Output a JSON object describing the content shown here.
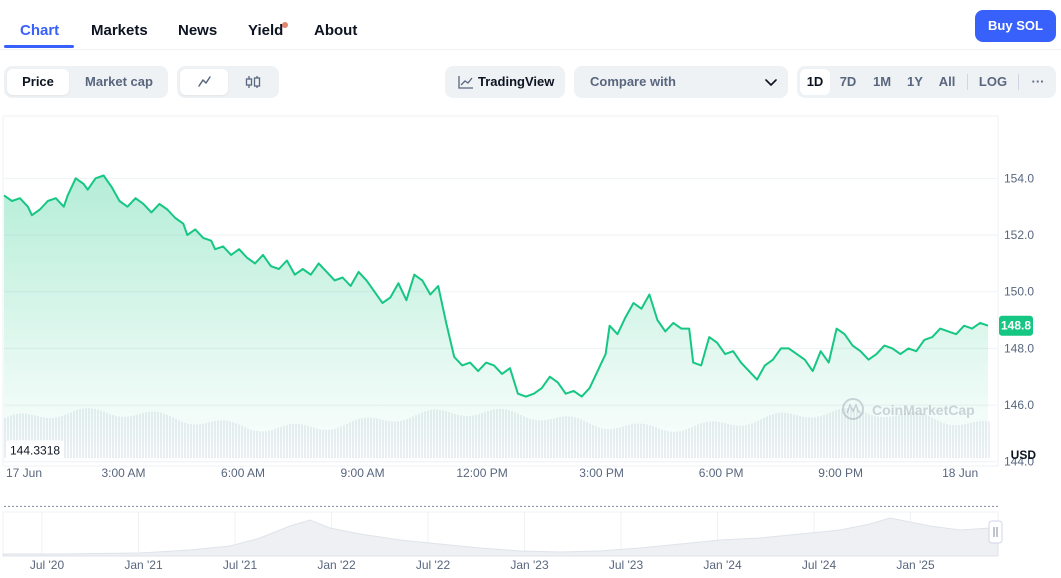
{
  "nav": {
    "tabs": [
      {
        "label": "Chart",
        "active": true
      },
      {
        "label": "Markets",
        "active": false
      },
      {
        "label": "News",
        "active": false
      },
      {
        "label": "Yield",
        "active": false
      },
      {
        "label": "About",
        "active": false
      }
    ],
    "buy_label": "Buy SOL"
  },
  "toolbar": {
    "metric_options": [
      "Price",
      "Market cap"
    ],
    "selected_metric": "Price",
    "chart_type_icons": [
      "line-chart-icon",
      "candlestick-icon"
    ],
    "tradingview_label": "TradingView",
    "compare_label": "Compare with",
    "ranges": [
      "1D",
      "7D",
      "1M",
      "1Y",
      "All"
    ],
    "selected_range": "1D",
    "log_label": "LOG",
    "more_label": "···"
  },
  "chart_data": {
    "type": "area",
    "y_ticks": [
      "154.0",
      "152.0",
      "150.0",
      "148.0",
      "146.0",
      "144.0"
    ],
    "y_tick_values": [
      154,
      152,
      150,
      148,
      146,
      144
    ],
    "ylim": [
      143.85,
      156.2
    ],
    "x_ticks": [
      "17 Jun",
      "3:00 AM",
      "6:00 AM",
      "9:00 AM",
      "12:00 PM",
      "3:00 PM",
      "6:00 PM",
      "9:00 PM",
      "18 Jun"
    ],
    "x_tick_hours": [
      0,
      3,
      6,
      9,
      12,
      15,
      18,
      21,
      24
    ],
    "x_range_hours": [
      0,
      24.9
    ],
    "currency_label": "USD",
    "current_price_label": "148.8",
    "reference_price_label": "144.3318",
    "reference_price": 144.3318,
    "watermark": "CoinMarketCap",
    "line_color": "#16c784",
    "series": [
      {
        "values": [
          [
            0.0,
            153.4
          ],
          [
            0.2,
            153.2
          ],
          [
            0.4,
            153.3
          ],
          [
            0.6,
            153.0
          ],
          [
            0.7,
            152.7
          ],
          [
            0.9,
            152.9
          ],
          [
            1.1,
            153.2
          ],
          [
            1.3,
            153.3
          ],
          [
            1.5,
            153.0
          ],
          [
            1.6,
            153.4
          ],
          [
            1.8,
            154.0
          ],
          [
            2.0,
            153.8
          ],
          [
            2.1,
            153.6
          ],
          [
            2.3,
            154.0
          ],
          [
            2.5,
            154.1
          ],
          [
            2.7,
            153.7
          ],
          [
            2.9,
            153.2
          ],
          [
            3.1,
            153.0
          ],
          [
            3.3,
            153.3
          ],
          [
            3.5,
            153.1
          ],
          [
            3.7,
            152.8
          ],
          [
            3.9,
            153.1
          ],
          [
            4.1,
            152.9
          ],
          [
            4.3,
            152.6
          ],
          [
            4.5,
            152.4
          ],
          [
            4.6,
            152.0
          ],
          [
            4.8,
            152.2
          ],
          [
            5.0,
            151.9
          ],
          [
            5.2,
            151.8
          ],
          [
            5.3,
            151.5
          ],
          [
            5.5,
            151.6
          ],
          [
            5.7,
            151.3
          ],
          [
            5.9,
            151.5
          ],
          [
            6.1,
            151.2
          ],
          [
            6.3,
            151.0
          ],
          [
            6.5,
            151.3
          ],
          [
            6.7,
            150.9
          ],
          [
            6.9,
            150.8
          ],
          [
            7.1,
            151.1
          ],
          [
            7.3,
            150.6
          ],
          [
            7.5,
            150.8
          ],
          [
            7.7,
            150.6
          ],
          [
            7.9,
            151.0
          ],
          [
            8.1,
            150.7
          ],
          [
            8.3,
            150.4
          ],
          [
            8.5,
            150.5
          ],
          [
            8.7,
            150.2
          ],
          [
            8.9,
            150.7
          ],
          [
            9.1,
            150.4
          ],
          [
            9.3,
            150.0
          ],
          [
            9.5,
            149.6
          ],
          [
            9.7,
            149.8
          ],
          [
            9.9,
            150.3
          ],
          [
            10.1,
            149.7
          ],
          [
            10.3,
            150.6
          ],
          [
            10.5,
            150.4
          ],
          [
            10.7,
            149.9
          ],
          [
            10.9,
            150.2
          ],
          [
            11.1,
            148.9
          ],
          [
            11.3,
            147.7
          ],
          [
            11.5,
            147.4
          ],
          [
            11.7,
            147.5
          ],
          [
            11.9,
            147.2
          ],
          [
            12.1,
            147.5
          ],
          [
            12.3,
            147.4
          ],
          [
            12.5,
            147.1
          ],
          [
            12.7,
            147.3
          ],
          [
            12.9,
            146.4
          ],
          [
            13.1,
            146.3
          ],
          [
            13.3,
            146.4
          ],
          [
            13.5,
            146.6
          ],
          [
            13.7,
            147.0
          ],
          [
            13.9,
            146.8
          ],
          [
            14.1,
            146.4
          ],
          [
            14.3,
            146.5
          ],
          [
            14.5,
            146.3
          ],
          [
            14.7,
            146.6
          ],
          [
            14.9,
            147.2
          ],
          [
            15.1,
            147.8
          ],
          [
            15.2,
            148.8
          ],
          [
            15.4,
            148.5
          ],
          [
            15.6,
            149.1
          ],
          [
            15.8,
            149.6
          ],
          [
            16.0,
            149.4
          ],
          [
            16.2,
            149.9
          ],
          [
            16.4,
            149.0
          ],
          [
            16.6,
            148.6
          ],
          [
            16.8,
            148.9
          ],
          [
            17.0,
            148.7
          ],
          [
            17.2,
            148.7
          ],
          [
            17.3,
            147.5
          ],
          [
            17.5,
            147.4
          ],
          [
            17.7,
            148.4
          ],
          [
            17.9,
            148.2
          ],
          [
            18.1,
            147.8
          ],
          [
            18.3,
            147.9
          ],
          [
            18.5,
            147.5
          ],
          [
            18.7,
            147.2
          ],
          [
            18.9,
            146.9
          ],
          [
            19.1,
            147.4
          ],
          [
            19.3,
            147.6
          ],
          [
            19.5,
            148.0
          ],
          [
            19.7,
            148.0
          ],
          [
            19.9,
            147.8
          ],
          [
            20.1,
            147.6
          ],
          [
            20.3,
            147.2
          ],
          [
            20.5,
            147.9
          ],
          [
            20.7,
            147.5
          ],
          [
            20.9,
            148.7
          ],
          [
            21.1,
            148.5
          ],
          [
            21.3,
            148.1
          ],
          [
            21.5,
            147.9
          ],
          [
            21.7,
            147.6
          ],
          [
            21.9,
            147.8
          ],
          [
            22.1,
            148.1
          ],
          [
            22.3,
            148.0
          ],
          [
            22.5,
            147.8
          ],
          [
            22.7,
            148.0
          ],
          [
            22.9,
            147.9
          ],
          [
            23.1,
            148.3
          ],
          [
            23.3,
            148.4
          ],
          [
            23.5,
            148.7
          ],
          [
            23.7,
            148.6
          ],
          [
            23.9,
            148.5
          ],
          [
            24.1,
            148.8
          ],
          [
            24.3,
            148.7
          ],
          [
            24.5,
            148.9
          ],
          [
            24.7,
            148.8
          ]
        ]
      }
    ]
  },
  "navigator": {
    "labels": [
      "Jul '20",
      "Jan '21",
      "Jul '21",
      "Jan '22",
      "Jul '22",
      "Jan '23",
      "Jul '23",
      "Jan '24",
      "Jul '24",
      "Jan '25"
    ],
    "handle_icon": "drag-handle-icon"
  }
}
